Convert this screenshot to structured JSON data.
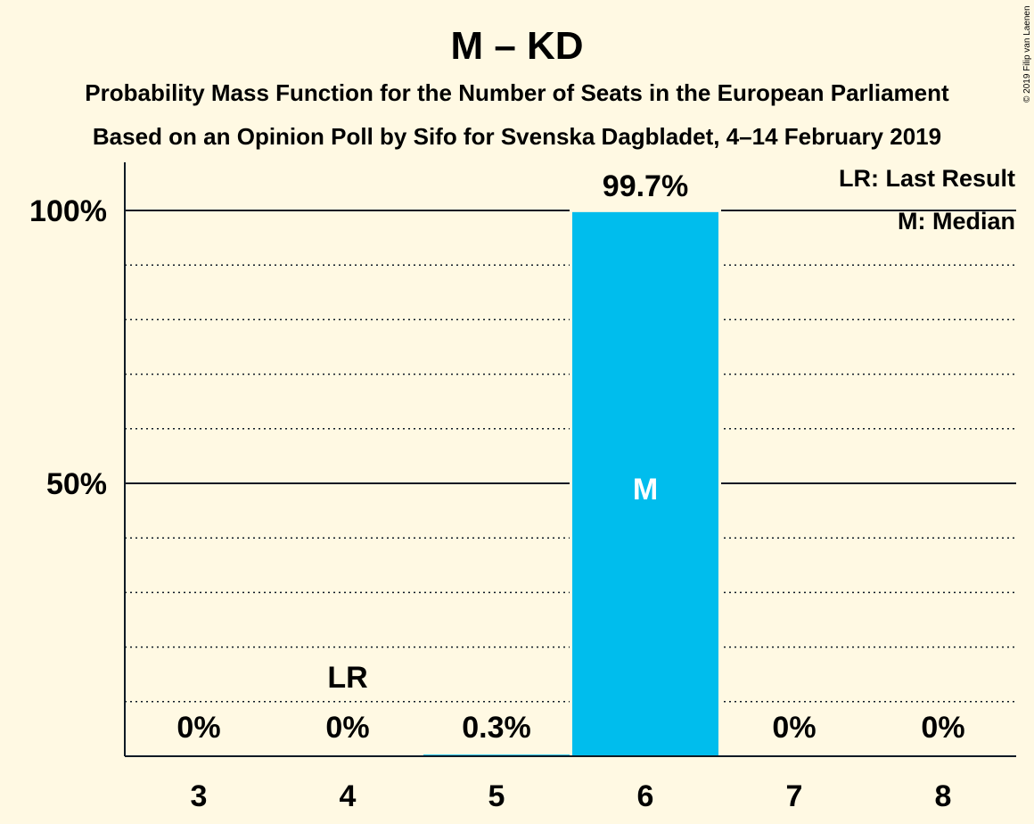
{
  "chart_data": {
    "type": "bar",
    "title": "M – KD",
    "subtitle_lines": [
      "Probability Mass Function for the Number of Seats in the European Parliament",
      "Based on an Opinion Poll by Sifo for Svenska Dagbladet, 4–14 February 2019"
    ],
    "categories": [
      "3",
      "4",
      "5",
      "6",
      "7",
      "8"
    ],
    "values": [
      0,
      0,
      0.3,
      99.7,
      0,
      0
    ],
    "value_labels": [
      "0%",
      "0%",
      "0.3%",
      "99.7%",
      "0%",
      "0%"
    ],
    "ylim": [
      0,
      110
    ],
    "yticks": [
      {
        "value": 50,
        "label": "50%"
      },
      {
        "value": 100,
        "label": "100%"
      }
    ],
    "minor_grid_step": 10,
    "last_result": {
      "category": "4",
      "label": "LR"
    },
    "median": {
      "category": "6",
      "label": "M"
    },
    "legend": [
      "LR: Last Result",
      "M: Median"
    ],
    "legend_position": "top-right",
    "bar_color": "#00BDED"
  },
  "copyright": "© 2019 Filip van Laenen"
}
